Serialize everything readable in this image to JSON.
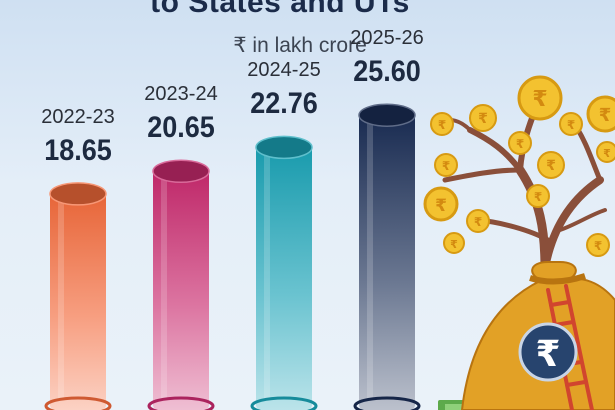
{
  "header": {
    "title_partial": "to States and UTs",
    "unit": "₹ in lakh crore"
  },
  "chart_data": {
    "type": "bar",
    "categories": [
      "2022-23",
      "2023-24",
      "2024-25",
      "2025-26"
    ],
    "values": [
      18.65,
      20.65,
      22.76,
      25.6
    ],
    "value_labels": [
      "18.65",
      "20.65",
      "22.76",
      "25.60"
    ],
    "title": "to States and UTs",
    "subtitle": "₹ in lakh crore",
    "xlabel": "",
    "ylabel": "",
    "bar_colors": [
      "#f36a3b",
      "#c92a6e",
      "#1aa3b6",
      "#1a2d55"
    ],
    "bar_style": "3d-cylinder",
    "grid": false,
    "legend": "none"
  },
  "illustration": {
    "icon": "money-tree-rupee-coins-icon",
    "bag_badge": "₹"
  }
}
